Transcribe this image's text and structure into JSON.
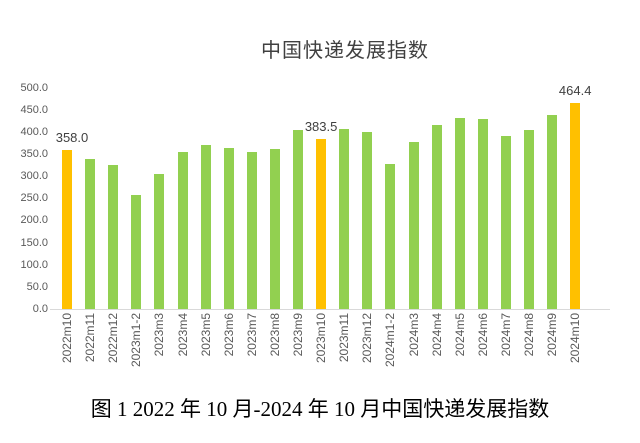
{
  "chart_data": {
    "type": "bar",
    "title": "中国快递发展指数",
    "categories": [
      "2022m10",
      "2022m11",
      "2022m12",
      "2023m1-2",
      "2023m3",
      "2023m4",
      "2023m5",
      "2023m6",
      "2023m7",
      "2023m8",
      "2023m9",
      "2023m10",
      "2023m11",
      "2023m12",
      "2024m1-2",
      "2024m3",
      "2024m4",
      "2024m5",
      "2024m6",
      "2024m7",
      "2024m8",
      "2024m9",
      "2024m10"
    ],
    "values": [
      358.0,
      338.0,
      326.0,
      257.0,
      305.0,
      355.0,
      371.0,
      364.0,
      354.0,
      361.0,
      405.0,
      383.5,
      406.0,
      400.0,
      327.0,
      378.0,
      415.0,
      432.0,
      430.0,
      390.0,
      404.0,
      438.0,
      464.4
    ],
    "highlighted_categories": [
      "2022m10",
      "2023m10",
      "2024m10"
    ],
    "data_labels": [
      {
        "category": "2022m10",
        "text": "358.0"
      },
      {
        "category": "2023m10",
        "text": "383.5"
      },
      {
        "category": "2024m10",
        "text": "464.4"
      }
    ],
    "colors": {
      "bar_default": "#92D050",
      "bar_highlight": "#FFC000",
      "axis_line": "#D9D9D9",
      "tick_text": "#595959",
      "data_label_text": "#404040",
      "title_text": "#404040"
    },
    "ylim": [
      0,
      500
    ],
    "ytick_step": 50,
    "ytick_decimals": 1,
    "grid": false,
    "legend_position": "none",
    "xlabel": "",
    "ylabel": ""
  },
  "caption": "图 1 2022 年 10 月-2024 年 10 月中国快递发展指数"
}
